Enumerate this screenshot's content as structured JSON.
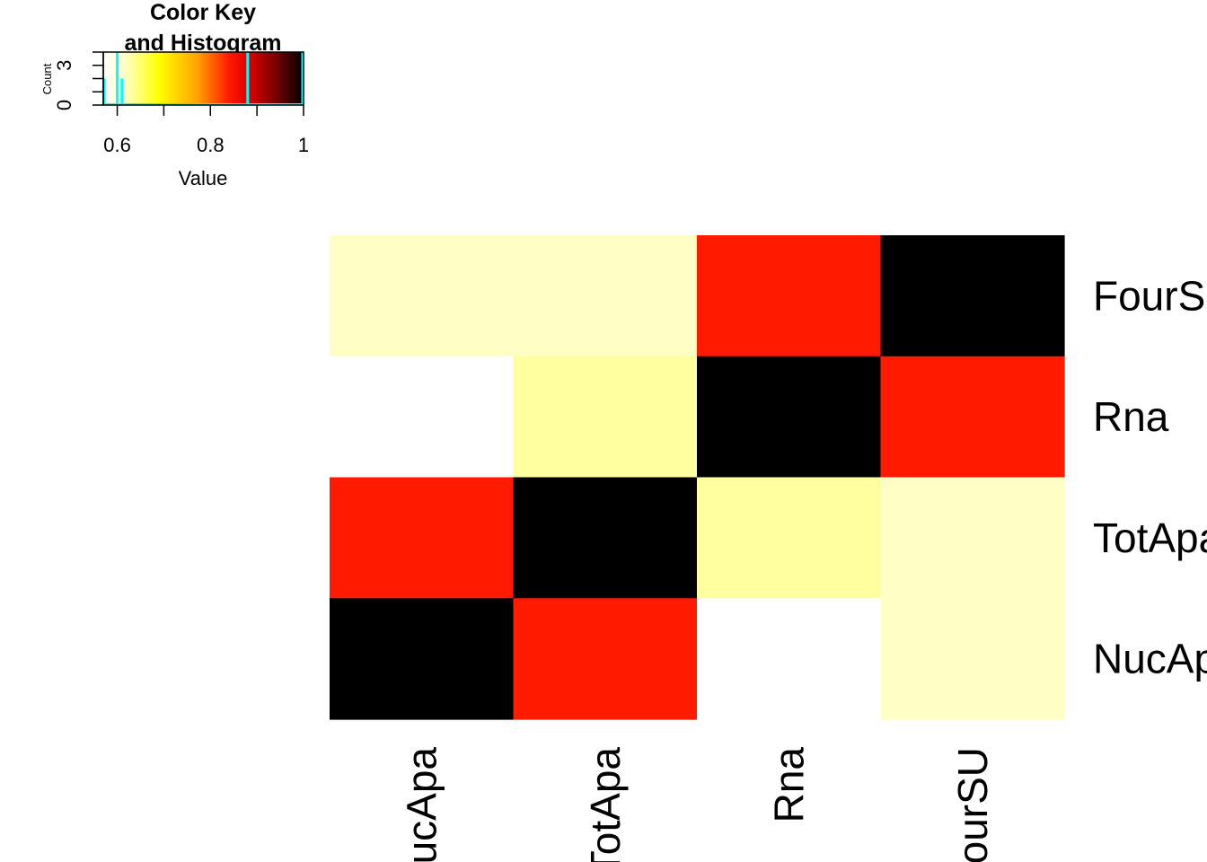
{
  "chart_data": [
    {
      "type": "histogram",
      "title_line1": "Color Key",
      "title_line2": "and Histogram",
      "xlabel": "Value",
      "ylabel": "Count",
      "x_ticks": [
        "0.6",
        "0.8",
        "1"
      ],
      "x_tick_values": [
        0.6,
        0.8,
        1.0
      ],
      "y_ticks": [
        "0",
        "3"
      ],
      "y_tick_values": [
        0,
        3
      ],
      "xlim": [
        0.57,
        1.0
      ],
      "ylim": [
        0,
        4
      ],
      "color_scale": [
        "#FFFFFF",
        "#FFFFBF",
        "#FFFF00",
        "#FFA500",
        "#FF1A00",
        "#E00000",
        "#8B0000",
        "#000000"
      ],
      "color_scale_values": [
        0.57,
        0.62,
        0.69,
        0.77,
        0.84,
        0.88,
        0.93,
        1.0
      ],
      "histogram_color": "#00FFFF",
      "bars": [
        {
          "x": 0.57,
          "count": 2
        },
        {
          "x": 0.6,
          "count": 4
        },
        {
          "x": 0.61,
          "count": 2
        },
        {
          "x": 0.88,
          "count": 4
        },
        {
          "x": 1.0,
          "count": 4
        }
      ]
    },
    {
      "type": "heatmap",
      "columns": [
        "NucApa",
        "TotApa",
        "Rna",
        "FourSU"
      ],
      "rows": [
        "FourSU",
        "Rna",
        "TotApa",
        "NucApa"
      ],
      "values": [
        [
          0.64,
          0.64,
          0.88,
          1.0
        ],
        [
          0.57,
          0.66,
          1.0,
          0.88
        ],
        [
          0.88,
          1.0,
          0.66,
          0.64
        ],
        [
          1.0,
          0.88,
          0.57,
          0.64
        ]
      ],
      "colors": [
        [
          "#FFFFC5",
          "#FFFFC5",
          "#FF1A00",
          "#000000"
        ],
        [
          "#FFFFFF",
          "#FFFFA0",
          "#000000",
          "#FF1A00"
        ],
        [
          "#FF1A00",
          "#000000",
          "#FFFFA0",
          "#FFFFC5"
        ],
        [
          "#000000",
          "#FF1A00",
          "#FFFFFF",
          "#FFFFC5"
        ]
      ]
    }
  ]
}
